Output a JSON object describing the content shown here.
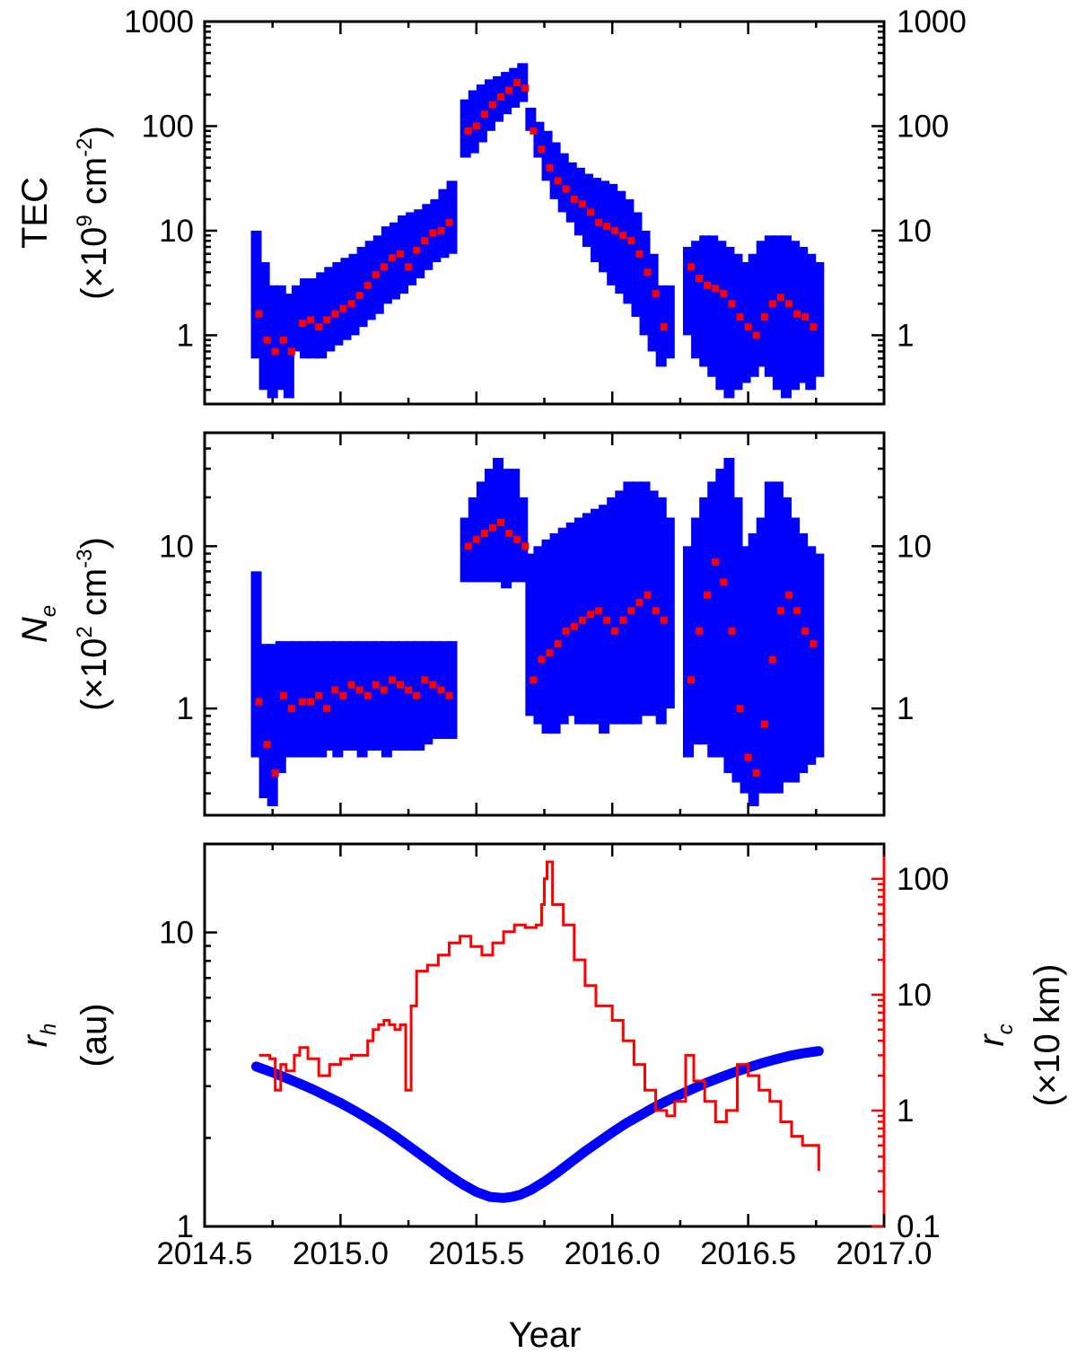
{
  "chart_data": [
    {
      "id": "panel-tec",
      "type": "scatter",
      "yscale": "log",
      "xlim": [
        2014.5,
        2017.0
      ],
      "ylim": [
        0.22,
        1000
      ],
      "yticks": [
        1,
        10,
        100,
        1000
      ],
      "ytick_labels": [
        "1",
        "10",
        "100",
        "1000"
      ],
      "ylabel": "TEC",
      "ylabel_unit": {
        "pre": "(×10",
        "sup": "9",
        "mid": " cm",
        "sup2": "-2",
        "post": ")"
      },
      "series": [
        {
          "name": "TEC (all)",
          "color": "#0000ff",
          "x": [
            2014.69,
            2014.72,
            2014.75,
            2014.78,
            2014.81,
            2014.84,
            2014.87,
            2014.9,
            2014.93,
            2014.96,
            2014.99,
            2015.02,
            2015.05,
            2015.08,
            2015.11,
            2015.14,
            2015.17,
            2015.2,
            2015.23,
            2015.26,
            2015.29,
            2015.32,
            2015.35,
            2015.38,
            2015.41,
            2015.46,
            2015.49,
            2015.52,
            2015.55,
            2015.58,
            2015.61,
            2015.64,
            2015.67,
            2015.7,
            2015.73,
            2015.76,
            2015.79,
            2015.82,
            2015.85,
            2015.88,
            2015.91,
            2015.94,
            2015.97,
            2016.0,
            2016.03,
            2016.06,
            2016.09,
            2016.12,
            2016.15,
            2016.18,
            2016.21,
            2016.28,
            2016.31,
            2016.34,
            2016.37,
            2016.4,
            2016.43,
            2016.46,
            2016.49,
            2016.52,
            2016.55,
            2016.58,
            2016.61,
            2016.64,
            2016.67,
            2016.7,
            2016.73,
            2016.76
          ],
          "ylow": [
            0.6,
            0.3,
            0.25,
            0.3,
            0.25,
            0.7,
            0.6,
            0.6,
            0.6,
            0.7,
            0.8,
            0.9,
            1.0,
            1.2,
            1.4,
            1.6,
            2.0,
            2.2,
            2.5,
            3.0,
            3.5,
            4.2,
            5.0,
            5.5,
            6.0,
            50,
            55,
            70,
            90,
            110,
            130,
            150,
            170,
            90,
            50,
            30,
            20,
            15,
            12,
            9,
            7,
            5,
            4,
            3,
            2.5,
            2.0,
            1.5,
            1.0,
            0.7,
            0.5,
            0.6,
            1.0,
            0.6,
            0.5,
            0.4,
            0.3,
            0.25,
            0.3,
            0.35,
            0.4,
            0.5,
            0.4,
            0.3,
            0.25,
            0.3,
            0.35,
            0.3,
            0.4
          ],
          "yhigh": [
            10,
            5,
            3,
            3,
            2.5,
            3,
            3.5,
            3.5,
            4,
            4.5,
            5,
            5.5,
            6,
            7,
            8,
            9,
            11,
            12,
            14,
            15,
            16,
            18,
            20,
            25,
            30,
            180,
            220,
            250,
            280,
            300,
            330,
            360,
            400,
            150,
            110,
            90,
            70,
            55,
            45,
            40,
            35,
            32,
            30,
            28,
            24,
            20,
            15,
            10,
            6,
            3,
            3,
            7,
            8,
            9,
            9,
            8,
            7,
            6,
            5,
            6,
            8,
            9,
            9,
            9,
            8,
            7,
            6,
            5
          ]
        },
        {
          "name": "TEC (mean)",
          "color": "#ff0000",
          "x": [
            2014.7,
            2014.73,
            2014.76,
            2014.79,
            2014.82,
            2014.86,
            2014.89,
            2014.92,
            2014.95,
            2014.98,
            2015.01,
            2015.04,
            2015.07,
            2015.1,
            2015.13,
            2015.16,
            2015.19,
            2015.22,
            2015.25,
            2015.28,
            2015.31,
            2015.34,
            2015.37,
            2015.4,
            2015.47,
            2015.5,
            2015.53,
            2015.56,
            2015.59,
            2015.62,
            2015.65,
            2015.68,
            2015.71,
            2015.74,
            2015.77,
            2015.8,
            2015.83,
            2015.86,
            2015.89,
            2015.92,
            2015.95,
            2015.98,
            2016.01,
            2016.04,
            2016.07,
            2016.1,
            2016.13,
            2016.16,
            2016.19,
            2016.29,
            2016.32,
            2016.35,
            2016.38,
            2016.41,
            2016.44,
            2016.47,
            2016.5,
            2016.53,
            2016.56,
            2016.59,
            2016.62,
            2016.65,
            2016.68,
            2016.71,
            2016.74
          ],
          "y": [
            1.6,
            0.9,
            0.7,
            0.9,
            0.7,
            1.3,
            1.4,
            1.2,
            1.4,
            1.6,
            1.8,
            2.0,
            2.4,
            3.0,
            3.8,
            4.5,
            5.5,
            6.0,
            4.5,
            6.5,
            8.0,
            9.5,
            10,
            12,
            90,
            100,
            130,
            160,
            190,
            220,
            260,
            230,
            90,
            60,
            40,
            30,
            25,
            20,
            18,
            15,
            12,
            11,
            10,
            9,
            8,
            6,
            4,
            2.5,
            1.2,
            4.5,
            3.5,
            3.0,
            2.8,
            2.5,
            2.0,
            1.5,
            1.2,
            1.0,
            1.5,
            2.0,
            2.3,
            2.0,
            1.6,
            1.5,
            1.2
          ]
        }
      ]
    },
    {
      "id": "panel-ne",
      "type": "scatter",
      "yscale": "log",
      "xlim": [
        2014.5,
        2017.0
      ],
      "ylim": [
        0.22,
        50
      ],
      "yticks": [
        1,
        10
      ],
      "ytick_labels": [
        "1",
        "10"
      ],
      "ylabel": "N",
      "ylabel_sub": "e",
      "ylabel_unit": {
        "pre": "(×10",
        "sup": "2",
        "mid": " cm",
        "sup2": "-3",
        "post": ")"
      },
      "series": [
        {
          "name": "Ne (all)",
          "color": "#0000ff",
          "x": [
            2014.69,
            2014.72,
            2014.75,
            2014.78,
            2014.81,
            2014.84,
            2014.87,
            2014.9,
            2014.93,
            2014.96,
            2014.99,
            2015.02,
            2015.05,
            2015.08,
            2015.11,
            2015.14,
            2015.17,
            2015.2,
            2015.23,
            2015.26,
            2015.29,
            2015.32,
            2015.35,
            2015.38,
            2015.41,
            2015.46,
            2015.49,
            2015.52,
            2015.55,
            2015.58,
            2015.61,
            2015.64,
            2015.67,
            2015.7,
            2015.73,
            2015.76,
            2015.79,
            2015.82,
            2015.85,
            2015.88,
            2015.91,
            2015.94,
            2015.97,
            2016.0,
            2016.03,
            2016.06,
            2016.09,
            2016.12,
            2016.15,
            2016.18,
            2016.21,
            2016.28,
            2016.31,
            2016.34,
            2016.37,
            2016.4,
            2016.43,
            2016.46,
            2016.49,
            2016.52,
            2016.55,
            2016.58,
            2016.61,
            2016.64,
            2016.67,
            2016.7,
            2016.73,
            2016.76
          ],
          "ylow": [
            0.5,
            0.28,
            0.25,
            0.4,
            0.5,
            0.5,
            0.5,
            0.5,
            0.5,
            0.55,
            0.5,
            0.55,
            0.55,
            0.5,
            0.55,
            0.55,
            0.5,
            0.55,
            0.55,
            0.55,
            0.55,
            0.6,
            0.65,
            0.65,
            0.65,
            6,
            6,
            6,
            6,
            6,
            5.5,
            6,
            6,
            0.9,
            0.8,
            0.7,
            0.7,
            0.8,
            0.9,
            0.8,
            0.8,
            0.8,
            0.7,
            0.8,
            0.8,
            0.8,
            0.8,
            0.9,
            0.9,
            0.8,
            1.0,
            0.5,
            0.6,
            0.6,
            0.5,
            0.5,
            0.4,
            0.35,
            0.3,
            0.25,
            0.3,
            0.3,
            0.3,
            0.35,
            0.35,
            0.4,
            0.45,
            0.5
          ],
          "yhigh": [
            7,
            2.5,
            2.5,
            2.6,
            2.6,
            2.6,
            2.6,
            2.6,
            2.6,
            2.6,
            2.6,
            2.6,
            2.6,
            2.6,
            2.6,
            2.6,
            2.6,
            2.6,
            2.6,
            2.6,
            2.6,
            2.6,
            2.6,
            2.6,
            2.6,
            15,
            20,
            25,
            30,
            35,
            30,
            30,
            20,
            9,
            10,
            11,
            12,
            13,
            14,
            15,
            16,
            17,
            18,
            20,
            22,
            25,
            25,
            25,
            22,
            20,
            15,
            10,
            15,
            20,
            25,
            30,
            35,
            20,
            10,
            12,
            15,
            25,
            25,
            20,
            15,
            12,
            10,
            9
          ]
        },
        {
          "name": "Ne (mean)",
          "color": "#ff0000",
          "x": [
            2014.7,
            2014.73,
            2014.76,
            2014.79,
            2014.82,
            2014.86,
            2014.89,
            2014.92,
            2014.95,
            2014.98,
            2015.01,
            2015.04,
            2015.07,
            2015.1,
            2015.13,
            2015.16,
            2015.19,
            2015.22,
            2015.25,
            2015.28,
            2015.31,
            2015.34,
            2015.37,
            2015.4,
            2015.47,
            2015.5,
            2015.53,
            2015.56,
            2015.59,
            2015.62,
            2015.65,
            2015.68,
            2015.71,
            2015.74,
            2015.77,
            2015.8,
            2015.83,
            2015.86,
            2015.89,
            2015.92,
            2015.95,
            2015.98,
            2016.01,
            2016.04,
            2016.07,
            2016.1,
            2016.13,
            2016.16,
            2016.19,
            2016.29,
            2016.32,
            2016.35,
            2016.38,
            2016.41,
            2016.44,
            2016.47,
            2016.5,
            2016.53,
            2016.56,
            2016.59,
            2016.62,
            2016.65,
            2016.68,
            2016.71,
            2016.74
          ],
          "y": [
            1.1,
            0.6,
            0.4,
            1.2,
            1.0,
            1.1,
            1.1,
            1.2,
            1.0,
            1.3,
            1.2,
            1.4,
            1.3,
            1.2,
            1.4,
            1.3,
            1.5,
            1.4,
            1.3,
            1.2,
            1.5,
            1.4,
            1.3,
            1.2,
            10,
            11,
            12,
            13,
            14,
            12,
            11,
            10,
            1.5,
            2.0,
            2.2,
            2.5,
            3.0,
            3.2,
            3.5,
            3.8,
            4.0,
            3.5,
            3.0,
            3.5,
            4.0,
            4.5,
            5.0,
            4.0,
            3.5,
            1.5,
            3.0,
            5.0,
            8.0,
            6.0,
            3.0,
            1.0,
            0.5,
            0.4,
            0.8,
            2.0,
            4.0,
            5.0,
            4.0,
            3.0,
            2.5
          ]
        }
      ]
    },
    {
      "id": "panel-rh-rc",
      "type": "line",
      "xlim": [
        2014.5,
        2017.0
      ],
      "xticks": [
        2014.5,
        2015.0,
        2015.5,
        2016.0,
        2016.5,
        2017.0
      ],
      "xtick_labels": [
        "2014.5",
        "2015.0",
        "2015.5",
        "2016.0",
        "2016.5",
        "2017.0"
      ],
      "xlabel": "Year",
      "left_axis": {
        "yscale": "log",
        "ylim": [
          1,
          20
        ],
        "yticks": [
          1,
          10
        ],
        "ytick_labels": [
          "1",
          "10"
        ],
        "ylabel": "r",
        "ylabel_sub": "h",
        "ylabel_unit": "(au)"
      },
      "right_axis": {
        "yscale": "log",
        "ylim": [
          0.1,
          200
        ],
        "yticks": [
          0.1,
          1,
          10,
          100
        ],
        "ytick_labels": [
          "0.1",
          "1",
          "10",
          "100"
        ],
        "ylabel": "r",
        "ylabel_sub": "c",
        "ylabel_unit": "(×10 km)",
        "color": "#ff0000"
      },
      "series": [
        {
          "name": "heliocentric distance r_h",
          "axis": "left",
          "color": "#0000ff",
          "x": [
            2014.69,
            2014.75,
            2014.8,
            2014.85,
            2014.9,
            2014.95,
            2015.0,
            2015.05,
            2015.1,
            2015.15,
            2015.2,
            2015.25,
            2015.3,
            2015.35,
            2015.4,
            2015.45,
            2015.5,
            2015.55,
            2015.6,
            2015.63,
            2015.66,
            2015.7,
            2015.75,
            2015.8,
            2015.85,
            2015.9,
            2015.95,
            2016.0,
            2016.05,
            2016.1,
            2016.15,
            2016.2,
            2016.25,
            2016.3,
            2016.35,
            2016.4,
            2016.45,
            2016.5,
            2016.55,
            2016.6,
            2016.65,
            2016.7,
            2016.76
          ],
          "y": [
            3.5,
            3.34,
            3.2,
            3.06,
            2.92,
            2.77,
            2.63,
            2.48,
            2.33,
            2.18,
            2.03,
            1.88,
            1.74,
            1.61,
            1.49,
            1.39,
            1.31,
            1.26,
            1.25,
            1.26,
            1.28,
            1.33,
            1.42,
            1.53,
            1.66,
            1.8,
            1.94,
            2.09,
            2.24,
            2.38,
            2.53,
            2.67,
            2.81,
            2.95,
            3.09,
            3.22,
            3.35,
            3.47,
            3.59,
            3.7,
            3.8,
            3.88,
            3.95
          ]
        },
        {
          "name": "rc (right axis)",
          "axis": "right",
          "color": "#ff0000",
          "x": [
            2014.7,
            2014.74,
            2014.76,
            2014.78,
            2014.8,
            2014.83,
            2014.85,
            2014.88,
            2014.92,
            2014.96,
            2015.0,
            2015.04,
            2015.08,
            2015.1,
            2015.12,
            2015.14,
            2015.16,
            2015.18,
            2015.2,
            2015.22,
            2015.24,
            2015.26,
            2015.28,
            2015.32,
            2015.36,
            2015.4,
            2015.44,
            2015.48,
            2015.52,
            2015.56,
            2015.6,
            2015.64,
            2015.68,
            2015.72,
            2015.74,
            2015.75,
            2015.76,
            2015.78,
            2015.82,
            2015.86,
            2015.9,
            2015.94,
            2016.0,
            2016.04,
            2016.08,
            2016.12,
            2016.16,
            2016.2,
            2016.23,
            2016.27,
            2016.3,
            2016.34,
            2016.38,
            2016.42,
            2016.46,
            2016.5,
            2016.54,
            2016.58,
            2016.62,
            2016.66,
            2016.7,
            2016.74,
            2016.76
          ],
          "y": [
            3.0,
            2.8,
            1.5,
            2.5,
            2.2,
            3.0,
            3.5,
            2.8,
            2.0,
            2.5,
            2.8,
            3.0,
            3.0,
            4.0,
            5.0,
            5.5,
            6.0,
            5.5,
            5.0,
            5.5,
            1.5,
            8.0,
            16.0,
            18.0,
            22.0,
            28.0,
            32.0,
            26.0,
            22.0,
            28.0,
            35.0,
            40.0,
            38.0,
            40.0,
            60.0,
            100.0,
            140.0,
            60.0,
            40.0,
            20.0,
            12.0,
            8.0,
            6.0,
            4.0,
            2.5,
            1.5,
            1.0,
            0.9,
            1.2,
            3.0,
            1.8,
            1.2,
            0.8,
            1.0,
            2.5,
            2.0,
            1.5,
            1.2,
            0.8,
            0.6,
            0.5,
            0.5,
            0.3
          ]
        }
      ]
    }
  ]
}
